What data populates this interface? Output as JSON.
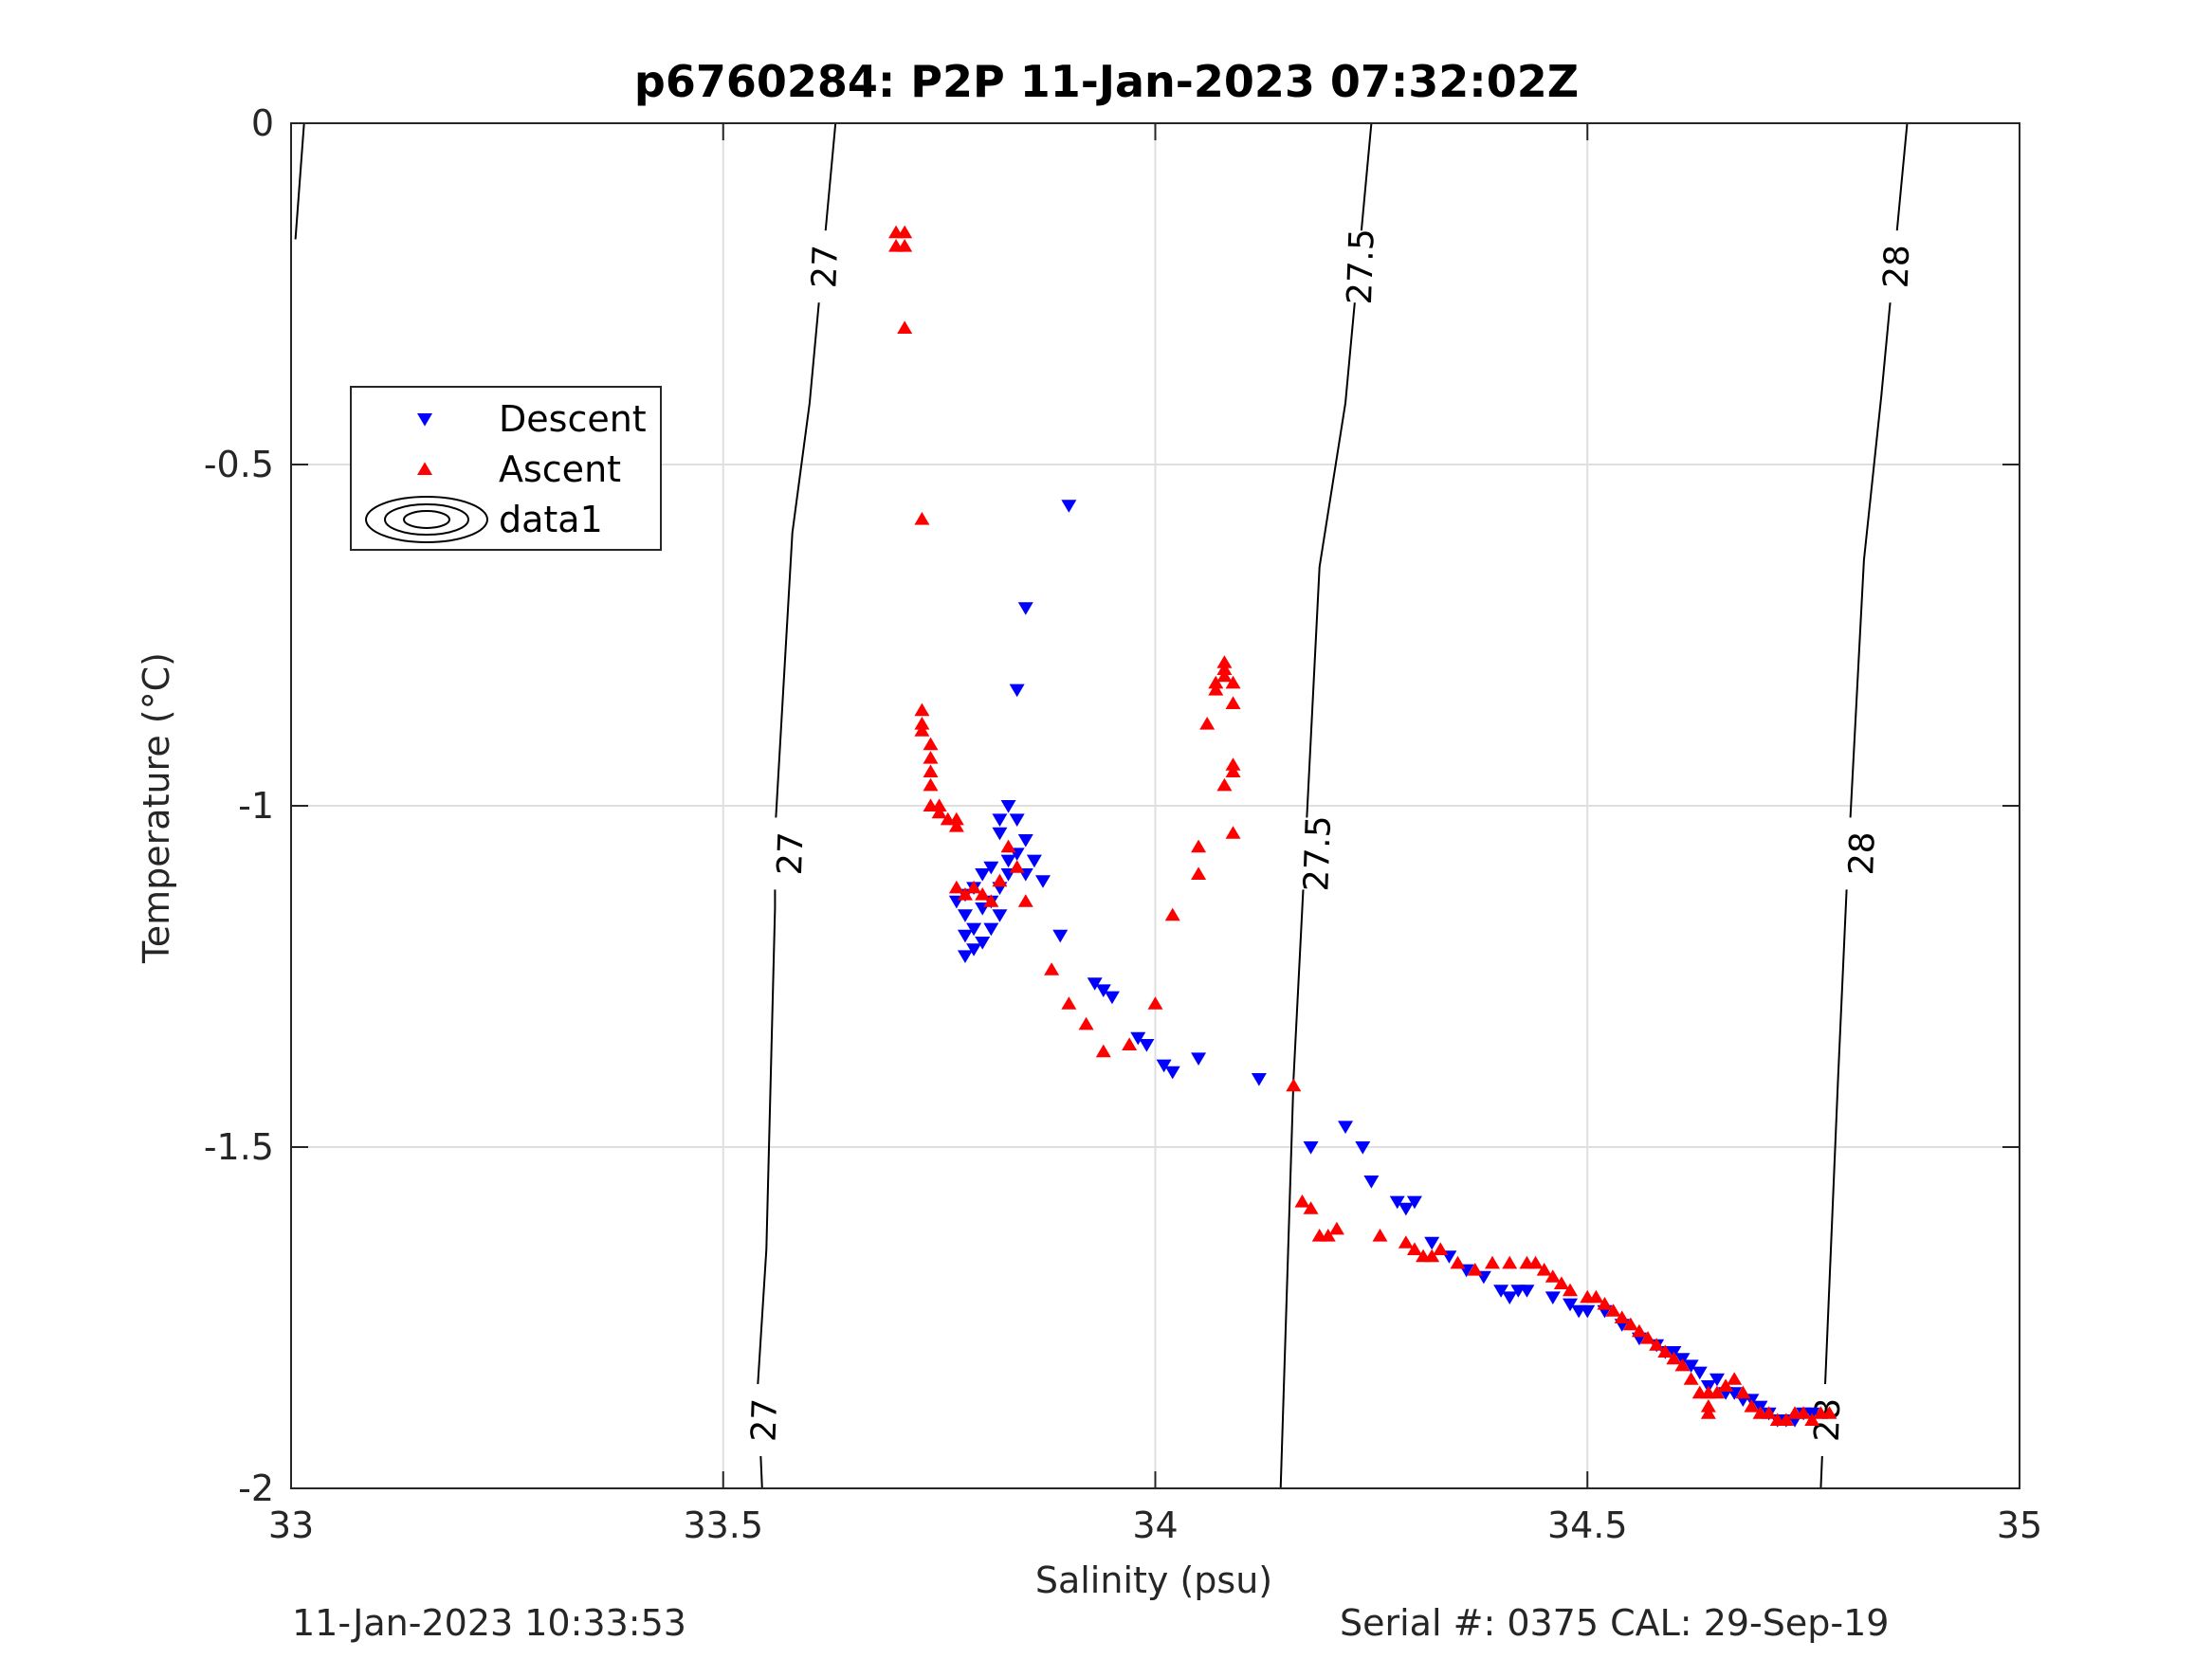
{
  "chart_data": {
    "type": "scatter",
    "title": "p6760284: P2P 11-Jan-2023 07:32:02Z",
    "xlabel": "Salinity (psu)",
    "ylabel": "Temperature (°C)",
    "xlim": [
      33,
      35
    ],
    "ylim": [
      -2,
      0
    ],
    "xticks": [
      "33",
      "33.5",
      "34",
      "34.5",
      "35"
    ],
    "yticks": [
      "0",
      "-0.5",
      "-1",
      "-1.5",
      "-2"
    ],
    "grid": true,
    "legend_position": "upper-left",
    "legend": [
      "Descent",
      "Ascent",
      "data1"
    ],
    "series": [
      {
        "name": "Descent",
        "marker": "triangle-down",
        "color": "#0000ff",
        "points": [
          [
            33.9,
            -0.56
          ],
          [
            33.85,
            -0.71
          ],
          [
            33.84,
            -0.83
          ],
          [
            33.83,
            -1.0
          ],
          [
            33.82,
            -1.02
          ],
          [
            33.84,
            -1.02
          ],
          [
            33.82,
            -1.04
          ],
          [
            33.85,
            -1.05
          ],
          [
            33.84,
            -1.07
          ],
          [
            33.83,
            -1.08
          ],
          [
            33.86,
            -1.08
          ],
          [
            33.81,
            -1.09
          ],
          [
            33.83,
            -1.1
          ],
          [
            33.8,
            -1.1
          ],
          [
            33.85,
            -1.1
          ],
          [
            33.87,
            -1.11
          ],
          [
            33.82,
            -1.12
          ],
          [
            33.79,
            -1.12
          ],
          [
            33.78,
            -1.13
          ],
          [
            33.81,
            -1.14
          ],
          [
            33.77,
            -1.14
          ],
          [
            33.8,
            -1.15
          ],
          [
            33.82,
            -1.16
          ],
          [
            33.78,
            -1.16
          ],
          [
            33.79,
            -1.18
          ],
          [
            33.81,
            -1.18
          ],
          [
            33.78,
            -1.19
          ],
          [
            33.8,
            -1.2
          ],
          [
            33.79,
            -1.21
          ],
          [
            33.78,
            -1.22
          ],
          [
            33.89,
            -1.19
          ],
          [
            33.93,
            -1.26
          ],
          [
            33.94,
            -1.27
          ],
          [
            33.95,
            -1.28
          ],
          [
            33.98,
            -1.34
          ],
          [
            33.99,
            -1.35
          ],
          [
            34.01,
            -1.38
          ],
          [
            34.02,
            -1.39
          ],
          [
            34.05,
            -1.37
          ],
          [
            34.12,
            -1.4
          ],
          [
            34.18,
            -1.5
          ],
          [
            34.22,
            -1.47
          ],
          [
            34.24,
            -1.5
          ],
          [
            34.25,
            -1.55
          ],
          [
            34.28,
            -1.58
          ],
          [
            34.29,
            -1.59
          ],
          [
            34.3,
            -1.58
          ],
          [
            34.32,
            -1.64
          ],
          [
            34.34,
            -1.66
          ],
          [
            34.36,
            -1.68
          ],
          [
            34.38,
            -1.69
          ],
          [
            34.4,
            -1.71
          ],
          [
            34.41,
            -1.72
          ],
          [
            34.42,
            -1.71
          ],
          [
            34.43,
            -1.71
          ],
          [
            34.46,
            -1.72
          ],
          [
            34.48,
            -1.73
          ],
          [
            34.49,
            -1.74
          ],
          [
            34.5,
            -1.74
          ],
          [
            34.52,
            -1.74
          ],
          [
            34.54,
            -1.76
          ],
          [
            34.56,
            -1.78
          ],
          [
            34.58,
            -1.79
          ],
          [
            34.59,
            -1.8
          ],
          [
            34.6,
            -1.8
          ],
          [
            34.61,
            -1.81
          ],
          [
            34.62,
            -1.82
          ],
          [
            34.63,
            -1.83
          ],
          [
            34.64,
            -1.85
          ],
          [
            34.65,
            -1.84
          ],
          [
            34.66,
            -1.86
          ],
          [
            34.67,
            -1.86
          ],
          [
            34.68,
            -1.87
          ],
          [
            34.69,
            -1.87
          ],
          [
            34.7,
            -1.88
          ],
          [
            34.71,
            -1.89
          ],
          [
            34.72,
            -1.9
          ],
          [
            34.73,
            -1.9
          ],
          [
            34.74,
            -1.9
          ],
          [
            34.75,
            -1.89
          ],
          [
            34.76,
            -1.89
          ]
        ]
      },
      {
        "name": "Ascent",
        "marker": "triangle-up",
        "color": "#ff0000",
        "points": [
          [
            33.7,
            -0.16
          ],
          [
            33.71,
            -0.16
          ],
          [
            33.7,
            -0.18
          ],
          [
            33.71,
            -0.18
          ],
          [
            33.71,
            -0.3
          ],
          [
            33.73,
            -0.58
          ],
          [
            33.73,
            -0.86
          ],
          [
            33.73,
            -0.88
          ],
          [
            33.73,
            -0.89
          ],
          [
            33.74,
            -0.91
          ],
          [
            33.74,
            -0.93
          ],
          [
            33.74,
            -0.95
          ],
          [
            33.74,
            -0.97
          ],
          [
            33.74,
            -1.0
          ],
          [
            33.75,
            -1.0
          ],
          [
            33.75,
            -1.01
          ],
          [
            33.76,
            -1.02
          ],
          [
            33.77,
            -1.03
          ],
          [
            33.77,
            -1.02
          ],
          [
            33.77,
            -1.12
          ],
          [
            33.78,
            -1.13
          ],
          [
            33.79,
            -1.12
          ],
          [
            33.8,
            -1.13
          ],
          [
            33.81,
            -1.14
          ],
          [
            33.82,
            -1.11
          ],
          [
            33.83,
            -1.06
          ],
          [
            33.84,
            -1.09
          ],
          [
            33.85,
            -1.14
          ],
          [
            33.88,
            -1.24
          ],
          [
            33.9,
            -1.29
          ],
          [
            33.92,
            -1.32
          ],
          [
            33.94,
            -1.36
          ],
          [
            33.97,
            -1.35
          ],
          [
            34.0,
            -1.29
          ],
          [
            34.02,
            -1.16
          ],
          [
            34.05,
            -1.1
          ],
          [
            34.05,
            -1.06
          ],
          [
            34.06,
            -0.88
          ],
          [
            34.07,
            -0.83
          ],
          [
            34.07,
            -0.82
          ],
          [
            34.08,
            -0.81
          ],
          [
            34.08,
            -0.79
          ],
          [
            34.08,
            -0.8
          ],
          [
            34.09,
            -0.82
          ],
          [
            34.09,
            -0.85
          ],
          [
            34.09,
            -0.94
          ],
          [
            34.09,
            -0.95
          ],
          [
            34.08,
            -0.97
          ],
          [
            34.09,
            -1.04
          ],
          [
            34.16,
            -1.41
          ],
          [
            34.17,
            -1.58
          ],
          [
            34.18,
            -1.59
          ],
          [
            34.19,
            -1.63
          ],
          [
            34.2,
            -1.63
          ],
          [
            34.21,
            -1.62
          ],
          [
            34.26,
            -1.63
          ],
          [
            34.29,
            -1.64
          ],
          [
            34.3,
            -1.65
          ],
          [
            34.31,
            -1.66
          ],
          [
            34.32,
            -1.66
          ],
          [
            34.33,
            -1.65
          ],
          [
            34.35,
            -1.67
          ],
          [
            34.37,
            -1.68
          ],
          [
            34.39,
            -1.67
          ],
          [
            34.41,
            -1.67
          ],
          [
            34.43,
            -1.67
          ],
          [
            34.44,
            -1.67
          ],
          [
            34.45,
            -1.68
          ],
          [
            34.46,
            -1.69
          ],
          [
            34.47,
            -1.7
          ],
          [
            34.48,
            -1.71
          ],
          [
            34.5,
            -1.72
          ],
          [
            34.51,
            -1.72
          ],
          [
            34.52,
            -1.73
          ],
          [
            34.53,
            -1.74
          ],
          [
            34.54,
            -1.75
          ],
          [
            34.55,
            -1.76
          ],
          [
            34.56,
            -1.77
          ],
          [
            34.57,
            -1.78
          ],
          [
            34.58,
            -1.79
          ],
          [
            34.59,
            -1.8
          ],
          [
            34.6,
            -1.81
          ],
          [
            34.61,
            -1.82
          ],
          [
            34.62,
            -1.84
          ],
          [
            34.63,
            -1.86
          ],
          [
            34.64,
            -1.86
          ],
          [
            34.64,
            -1.88
          ],
          [
            34.64,
            -1.89
          ],
          [
            34.65,
            -1.86
          ],
          [
            34.66,
            -1.85
          ],
          [
            34.67,
            -1.84
          ],
          [
            34.68,
            -1.86
          ],
          [
            34.69,
            -1.88
          ],
          [
            34.7,
            -1.89
          ],
          [
            34.71,
            -1.89
          ],
          [
            34.72,
            -1.9
          ],
          [
            34.73,
            -1.9
          ],
          [
            34.74,
            -1.89
          ],
          [
            34.75,
            -1.89
          ],
          [
            34.76,
            -1.9
          ],
          [
            34.77,
            -1.89
          ],
          [
            34.78,
            -1.89
          ]
        ]
      }
    ],
    "contours": [
      {
        "level": "27",
        "points": [
          [
            33.63,
            0
          ],
          [
            33.6,
            -0.41
          ],
          [
            33.58,
            -0.6
          ],
          [
            33.56,
            -1.04
          ],
          [
            33.56,
            -1.15
          ],
          [
            33.55,
            -1.65
          ],
          [
            33.54,
            -1.85
          ],
          [
            33.545,
            -2
          ]
        ],
        "labels": [
          [
            33.62,
            -0.21
          ],
          [
            33.58,
            -1.07
          ],
          [
            33.55,
            -1.9
          ]
        ]
      },
      {
        "level": "27.5",
        "points": [
          [
            34.25,
            0
          ],
          [
            34.22,
            -0.41
          ],
          [
            34.19,
            -0.65
          ],
          [
            34.17,
            -1.15
          ],
          [
            34.16,
            -1.4
          ],
          [
            34.145,
            -2
          ]
        ],
        "labels": [
          [
            34.24,
            -0.21
          ],
          [
            34.19,
            -1.07
          ]
        ]
      },
      {
        "level": "28",
        "points": [
          [
            34.87,
            0
          ],
          [
            34.84,
            -0.4
          ],
          [
            34.82,
            -0.64
          ],
          [
            34.8,
            -1.12
          ],
          [
            34.79,
            -1.4
          ],
          [
            34.77,
            -2
          ]
        ],
        "labels": [
          [
            34.86,
            -0.21
          ],
          [
            34.82,
            -1.07
          ],
          [
            34.78,
            -1.9
          ]
        ]
      },
      {
        "level": "",
        "points": [
          [
            33.015,
            0
          ],
          [
            33.005,
            -0.17
          ]
        ],
        "labels": []
      }
    ]
  },
  "footer": {
    "left": "11-Jan-2023 10:33:53",
    "right": "Serial #: 0375  CAL: 29-Sep-19"
  }
}
